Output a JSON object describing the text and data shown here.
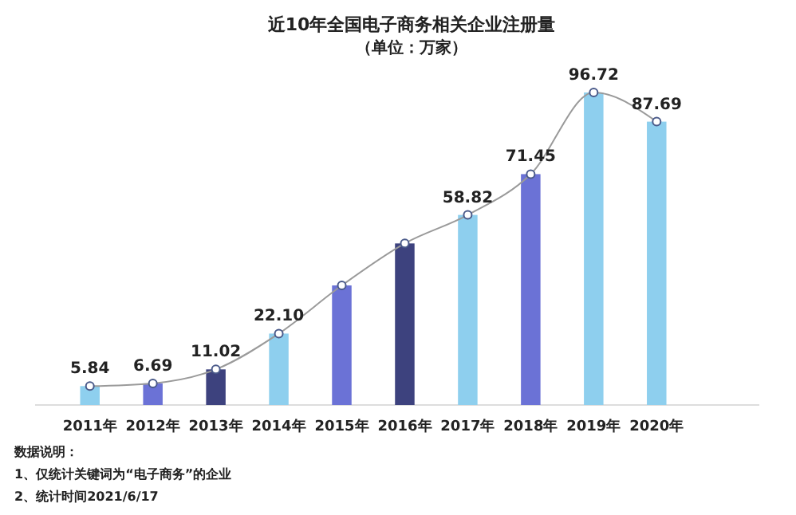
{
  "chart_data": {
    "type": "bar",
    "title": "近10年全国电子商务相关企业注册量",
    "subtitle": "（单位：万家）",
    "categories": [
      "2011年",
      "2012年",
      "2013年",
      "2014年",
      "2015年",
      "2016年",
      "2017年",
      "2018年",
      "2019年",
      "2020年"
    ],
    "series": [
      {
        "colors": [
          "#8ecfee",
          "#6b72d6",
          "#3d427e",
          "#8ecfee",
          "#6b72d6",
          "#3d427e",
          "#8ecfee",
          "#6b72d6",
          "#8ecfee",
          "#8ecfee"
        ],
        "values": [
          5.84,
          6.69,
          11.02,
          22.1,
          37,
          50,
          58.82,
          71.45,
          96.72,
          87.69
        ]
      },
      {
        "type": "line",
        "color": "#9a9a9a",
        "marker": "circle",
        "values": [
          5.84,
          6.69,
          11.02,
          22.1,
          37,
          50,
          58.82,
          71.45,
          96.72,
          87.69
        ],
        "value_labels": [
          "5.84",
          "6.69",
          "11.02",
          "22.10",
          null,
          null,
          "58.82",
          "71.45",
          "96.72",
          "87.69"
        ]
      }
    ],
    "annotations": [
      "数据说明：",
      "1、仅统计关键词为“电子商务”的企业",
      "2、统计时间2021/6/17"
    ]
  }
}
